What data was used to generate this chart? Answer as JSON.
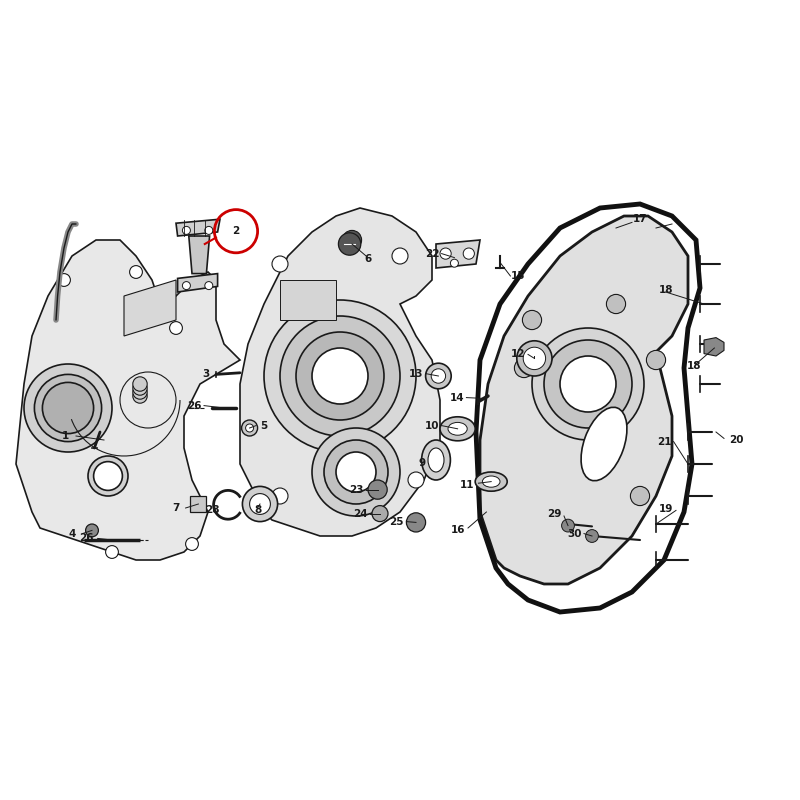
{
  "bg_color": "#ffffff",
  "line_color": "#1a1a1a",
  "highlight_color": "#cc0000",
  "fig_width": 8.0,
  "fig_height": 8.0
}
